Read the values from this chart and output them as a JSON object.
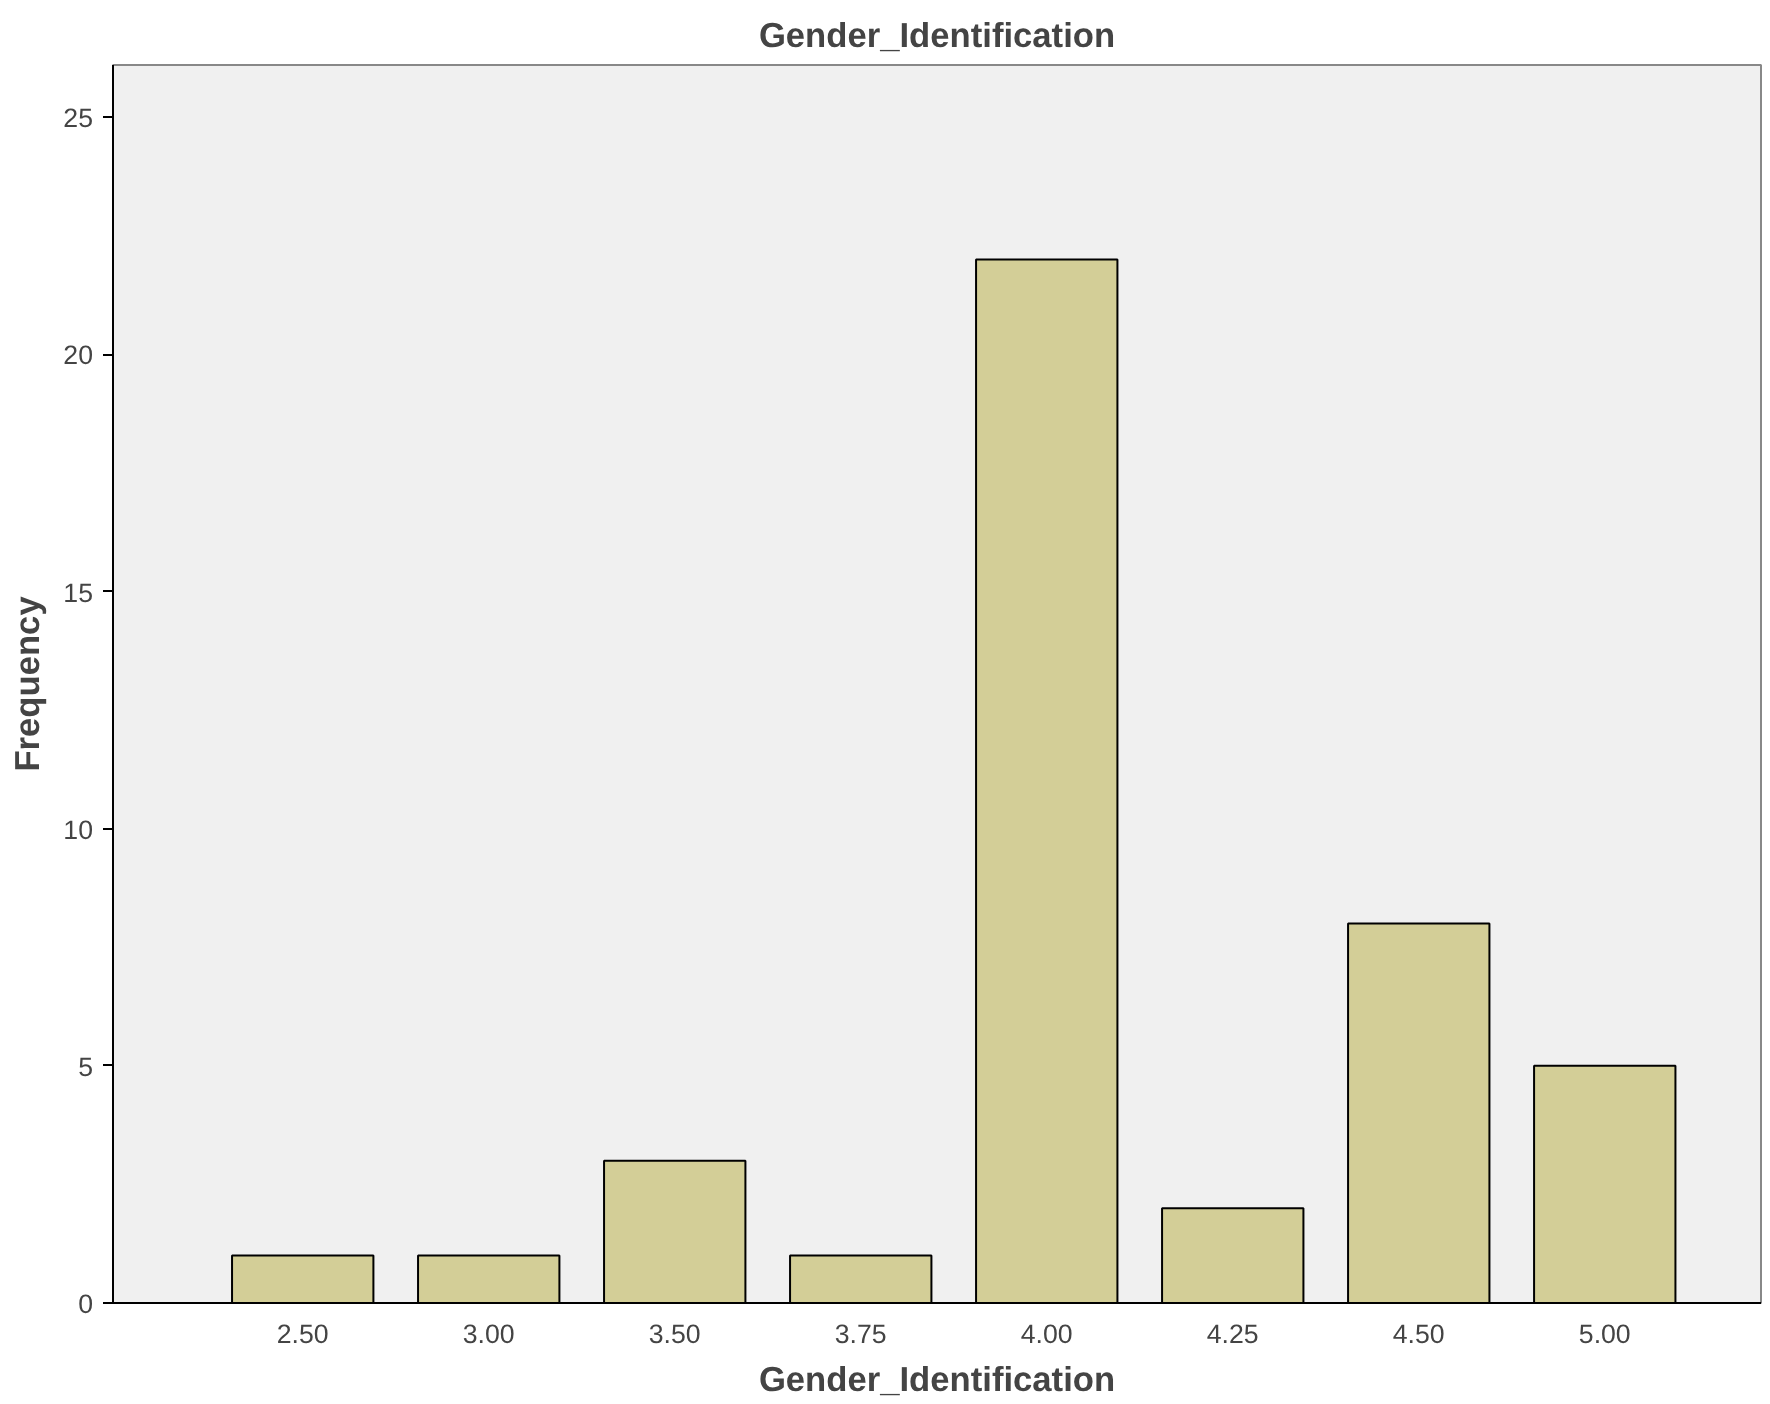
{
  "chart_data": {
    "type": "bar",
    "title": "Gender_Identification",
    "xlabel": "Gender_Identification",
    "ylabel": "Frequency",
    "categories": [
      "2.50",
      "3.00",
      "3.50",
      "3.75",
      "4.00",
      "4.25",
      "4.50",
      "5.00"
    ],
    "values": [
      1,
      1,
      3,
      1,
      22,
      2,
      8,
      5
    ],
    "color": "#d3ce97",
    "ylim": [
      0,
      26.1
    ],
    "yticks": [
      0,
      5,
      10,
      15,
      20,
      25
    ],
    "grid": false
  }
}
